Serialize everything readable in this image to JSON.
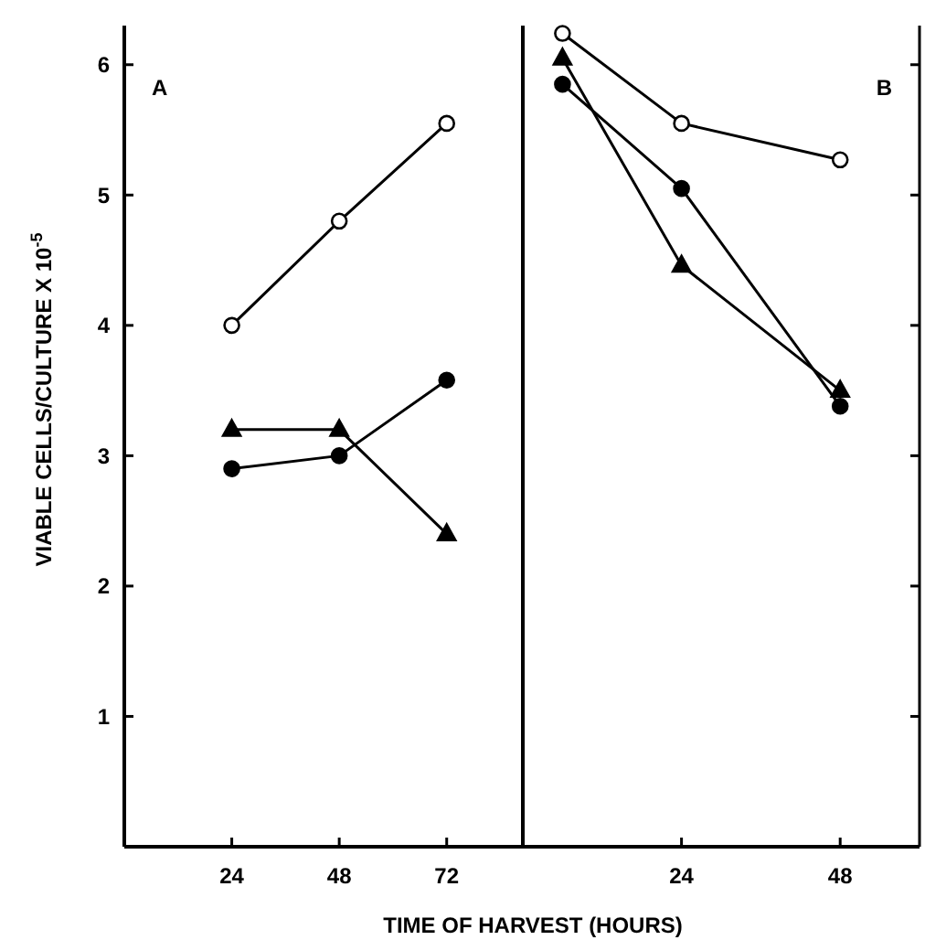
{
  "chart_data": [
    {
      "type": "line",
      "annotations": [
        "A"
      ],
      "ylabel": "VIABLE CELLS/CULTURE X 10$^{-5}$",
      "xlabel": "TIME OF HARVEST (HOURS)",
      "xlim": [
        0,
        89
      ],
      "xticks": [
        24,
        48,
        72
      ],
      "ylim": [
        0,
        6.3
      ],
      "yticks": [
        1,
        2,
        3,
        4,
        5,
        6
      ],
      "grid": false,
      "line_style": "solid",
      "series": [
        {
          "color": "#ffffff",
          "marker": "circle",
          "x": [
            24,
            48,
            72
          ],
          "values": [
            4.0,
            4.8,
            5.55
          ]
        },
        {
          "color": "#000000",
          "marker": "circle",
          "x": [
            24,
            48,
            72
          ],
          "values": [
            2.9,
            3.0,
            3.58
          ]
        },
        {
          "color": "#000000",
          "marker": "triangle",
          "x": [
            24,
            48,
            72
          ],
          "values": [
            3.2,
            3.2,
            2.4
          ]
        }
      ]
    },
    {
      "type": "line",
      "annotations": [
        "B"
      ],
      "xlim": [
        0,
        60
      ],
      "xticks": [
        24,
        48
      ],
      "ylim": [
        0,
        6.3
      ],
      "yticks": [
        1,
        2,
        3,
        4,
        5,
        6
      ],
      "tick_labels": "x",
      "grid": false,
      "line_style": "solid",
      "series": [
        {
          "color": "#ffffff",
          "marker": "circle",
          "x": [
            6,
            24,
            48
          ],
          "values": [
            6.24,
            5.55,
            5.27
          ]
        },
        {
          "color": "#000000",
          "marker": "circle",
          "x": [
            6,
            24,
            48
          ],
          "values": [
            5.85,
            5.05,
            3.38
          ]
        },
        {
          "color": "#000000",
          "marker": "triangle",
          "x": [
            6,
            24,
            48
          ],
          "values": [
            6.05,
            4.46,
            3.5
          ]
        }
      ]
    }
  ]
}
